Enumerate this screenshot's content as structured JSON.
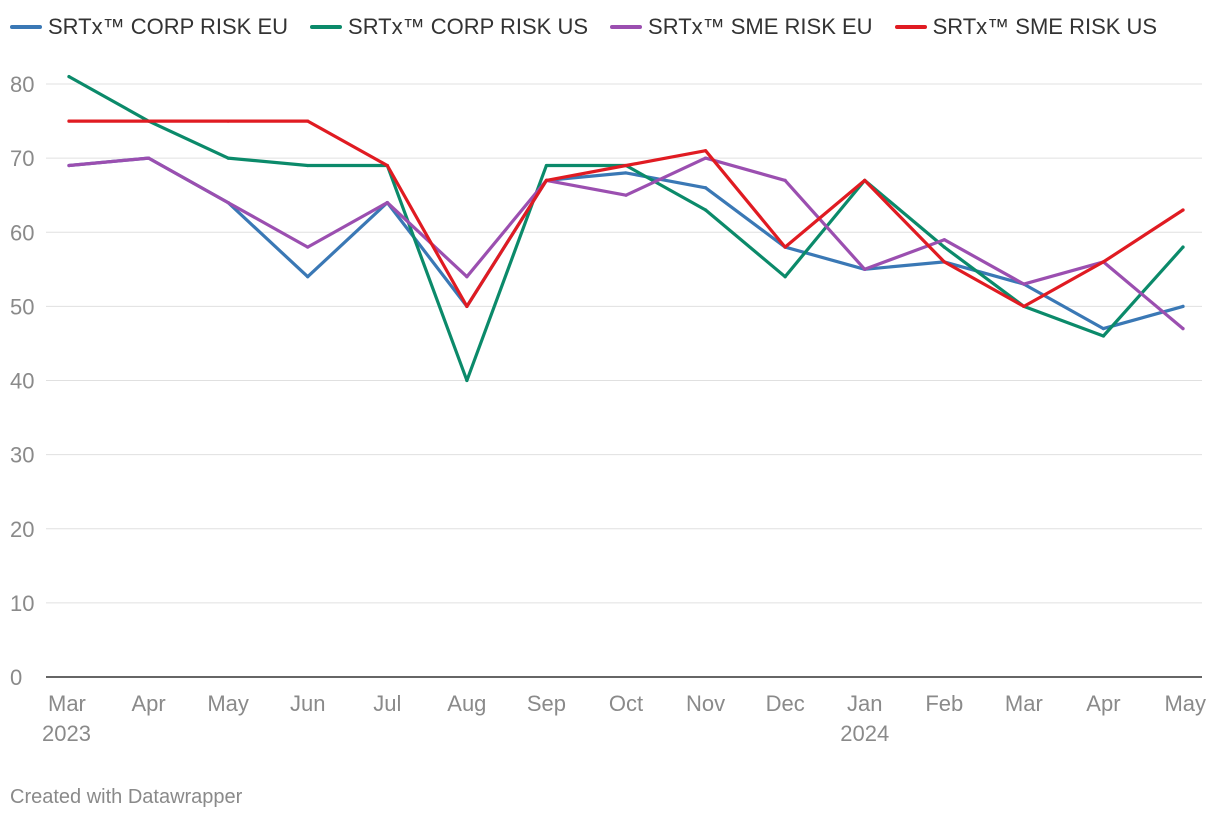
{
  "chart_data": {
    "type": "line",
    "title": "",
    "xlabel": "",
    "ylabel": "",
    "ylim": [
      0,
      80
    ],
    "yticks": [
      0,
      10,
      20,
      30,
      40,
      50,
      60,
      70,
      80
    ],
    "grid": true,
    "legend_position": "top-left",
    "categories": [
      "Mar",
      "Apr",
      "May",
      "Jun",
      "Jul",
      "Aug",
      "Sep",
      "Oct",
      "Nov",
      "Dec",
      "Jan",
      "Feb",
      "Mar",
      "Apr",
      "May"
    ],
    "year_labels": [
      {
        "index": 0,
        "label": "2023"
      },
      {
        "index": 10,
        "label": "2024"
      }
    ],
    "series": [
      {
        "name": "SRTx™ CORP RISK EU",
        "color": "#3a78b5",
        "values": [
          69,
          70,
          64,
          54,
          64,
          50,
          67,
          68,
          66,
          58,
          55,
          56,
          53,
          47,
          50
        ]
      },
      {
        "name": "SRTx™ CORP RISK US",
        "color": "#0b8a6a",
        "values": [
          81,
          75,
          70,
          69,
          69,
          40,
          69,
          69,
          63,
          54,
          67,
          58,
          50,
          46,
          58
        ]
      },
      {
        "name": "SRTx™ SME RISK EU",
        "color": "#9b4fb0",
        "values": [
          69,
          70,
          64,
          58,
          64,
          54,
          67,
          65,
          70,
          67,
          55,
          59,
          53,
          56,
          47
        ]
      },
      {
        "name": "SRTx™ SME RISK US",
        "color": "#e01b22",
        "values": [
          75,
          75,
          75,
          75,
          69,
          50,
          67,
          69,
          71,
          58,
          67,
          56,
          50,
          56,
          63
        ]
      }
    ]
  },
  "footer": {
    "credit": "Created with Datawrapper"
  }
}
